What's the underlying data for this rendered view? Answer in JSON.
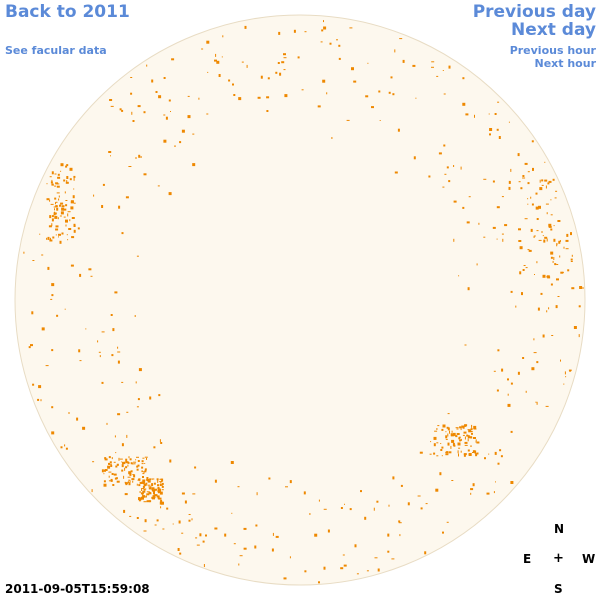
{
  "nav": {
    "back": "Back to 2011",
    "facular": "See facular data",
    "previous_day": "Previous day",
    "next_day": "Next day",
    "previous_hour": "Previous hour",
    "next_hour": "Next hour"
  },
  "compass": {
    "north": "N",
    "east": "E",
    "center": "+",
    "west": "W",
    "south": "S"
  },
  "timestamp": "2011-09-05T15:59:08",
  "colors": {
    "link": "#5b8ad8",
    "disk_fill": "#fdf8ee",
    "disk_outline": "#e8dcc4",
    "feature": "#ee8800"
  }
}
